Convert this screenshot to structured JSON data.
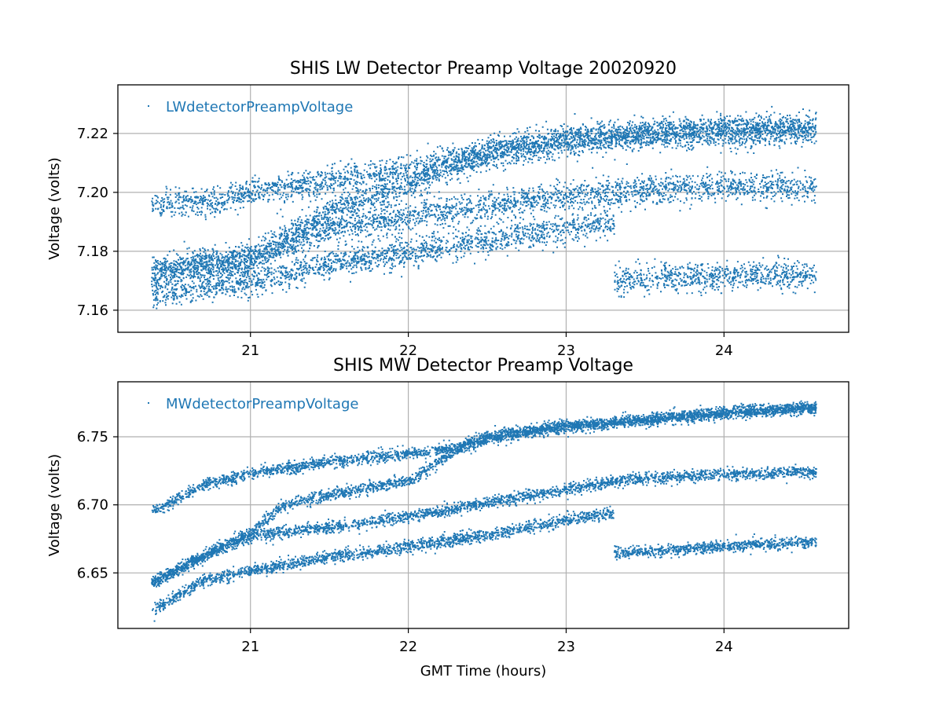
{
  "colors": {
    "series": "#1f77b4",
    "grid": "#b0b0b0",
    "frame": "#000000"
  },
  "chart_data": [
    {
      "type": "scatter",
      "title": "SHIS LW Detector Preamp Voltage 20020920",
      "xlabel": "",
      "ylabel": "Voltage (volts)",
      "xlim": [
        20.16,
        24.79
      ],
      "ylim": [
        7.1525,
        7.2365
      ],
      "xticks": [
        21,
        22,
        23,
        24
      ],
      "xtick_labels": [
        "21",
        "22",
        "23",
        "24"
      ],
      "yticks": [
        7.16,
        7.18,
        7.2,
        7.22
      ],
      "ytick_labels": [
        "7.16",
        "7.18",
        "7.20",
        "7.22"
      ],
      "grid": true,
      "legend": {
        "location": "top-left",
        "label": "LWdetectorPreampVoltage"
      },
      "series": [
        {
          "name": "LWdetectorPreampVoltage",
          "approximate_trends": [
            {
              "band": "upper",
              "x": [
                20.37,
                21.0,
                21.5,
                22.0,
                22.5,
                23.0,
                23.5,
                24.0,
                24.58
              ],
              "y": [
                7.174,
                7.178,
                7.194,
                7.203,
                7.213,
                7.218,
                7.22,
                7.221,
                7.222
              ]
            },
            {
              "band": "middle-high",
              "x": [
                20.37,
                20.8,
                21.0,
                21.5,
                22.0,
                22.5,
                23.0,
                23.5,
                24.0,
                24.58
              ],
              "y": [
                7.196,
                7.197,
                7.2,
                7.204,
                7.208,
                7.214,
                7.218,
                7.22,
                7.221,
                7.222
              ]
            },
            {
              "band": "middle-low",
              "x": [
                20.37,
                21.0,
                21.5,
                22.0,
                22.5,
                23.0,
                23.5,
                24.0,
                24.58
              ],
              "y": [
                7.172,
                7.178,
                7.188,
                7.192,
                7.196,
                7.199,
                7.201,
                7.202,
                7.202
              ]
            },
            {
              "band": "lower",
              "x": [
                20.37,
                21.0,
                21.5,
                22.0,
                22.5,
                23.0,
                23.3
              ],
              "y": [
                7.166,
                7.17,
                7.176,
                7.18,
                7.184,
                7.188,
                7.19
              ]
            },
            {
              "band": "lower-after-step",
              "x": [
                23.3,
                23.5,
                24.0,
                24.58
              ],
              "y": [
                7.17,
                7.171,
                7.172,
                7.172
              ]
            }
          ]
        }
      ]
    },
    {
      "type": "scatter",
      "title": "SHIS MW Detector Preamp Voltage",
      "xlabel": "GMT Time (hours)",
      "ylabel": "Voltage (volts)",
      "xlim": [
        20.16,
        24.79
      ],
      "ylim": [
        6.6092,
        6.7904
      ],
      "xticks": [
        21,
        22,
        23,
        24
      ],
      "xtick_labels": [
        "21",
        "22",
        "23",
        "24"
      ],
      "yticks": [
        6.65,
        6.7,
        6.75
      ],
      "ytick_labels": [
        "6.65",
        "6.70",
        "6.75"
      ],
      "grid": true,
      "legend": {
        "location": "top-left",
        "label": "MWdetectorPreampVoltage"
      },
      "series": [
        {
          "name": "MWdetectorPreampVoltage",
          "approximate_trends": [
            {
              "band": "top",
              "x": [
                20.37,
                20.7,
                21.0,
                21.5,
                22.0,
                22.3,
                22.6,
                23.0,
                23.5,
                24.0,
                24.58
              ],
              "y": [
                6.695,
                6.715,
                6.724,
                6.732,
                6.738,
                6.742,
                6.752,
                6.758,
                6.763,
                6.768,
                6.772
              ]
            },
            {
              "band": "second",
              "x": [
                20.37,
                20.7,
                21.0,
                21.2,
                21.5,
                22.0,
                22.2,
                22.4,
                22.6,
                23.0,
                23.5,
                24.0,
                24.58
              ],
              "y": [
                6.643,
                6.663,
                6.68,
                6.7,
                6.708,
                6.718,
                6.733,
                6.748,
                6.752,
                6.758,
                6.763,
                6.768,
                6.772
              ]
            },
            {
              "band": "third",
              "x": [
                20.37,
                20.7,
                21.0,
                21.5,
                22.0,
                22.5,
                23.0,
                23.3,
                23.5,
                24.0,
                24.58
              ],
              "y": [
                6.643,
                6.663,
                6.678,
                6.684,
                6.692,
                6.702,
                6.712,
                6.718,
                6.72,
                6.723,
                6.725
              ]
            },
            {
              "band": "bottom",
              "x": [
                20.37,
                20.7,
                21.0,
                21.5,
                22.0,
                22.5,
                23.0,
                23.3
              ],
              "y": [
                6.622,
                6.645,
                6.652,
                6.662,
                6.67,
                6.678,
                6.69,
                6.694
              ]
            },
            {
              "band": "bottom-after-step",
              "x": [
                23.3,
                23.5,
                24.0,
                24.58
              ],
              "y": [
                6.665,
                6.666,
                6.67,
                6.673
              ]
            }
          ]
        }
      ]
    }
  ]
}
